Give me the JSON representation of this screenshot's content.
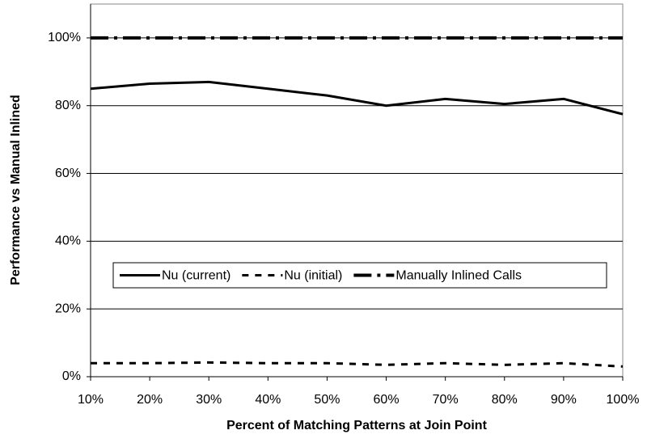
{
  "chart_data": {
    "type": "line",
    "xlabel": "Percent of Matching Patterns at Join Point",
    "ylabel": "Performance vs Manual Inlined",
    "x": [
      10,
      20,
      30,
      40,
      50,
      60,
      70,
      80,
      90,
      100
    ],
    "xlim": [
      10,
      100
    ],
    "xticks": [
      {
        "value": 10,
        "label": "10%"
      },
      {
        "value": 20,
        "label": "20%"
      },
      {
        "value": 30,
        "label": "30%"
      },
      {
        "value": 40,
        "label": "40%"
      },
      {
        "value": 50,
        "label": "50%"
      },
      {
        "value": 60,
        "label": "60%"
      },
      {
        "value": 70,
        "label": "70%"
      },
      {
        "value": 80,
        "label": "80%"
      },
      {
        "value": 90,
        "label": "90%"
      },
      {
        "value": 100,
        "label": "100%"
      }
    ],
    "ylim": [
      0,
      110
    ],
    "yticks": [
      {
        "value": 0,
        "label": "0%"
      },
      {
        "value": 20,
        "label": "20%"
      },
      {
        "value": 40,
        "label": "40%"
      },
      {
        "value": 60,
        "label": "60%"
      },
      {
        "value": 80,
        "label": "80%"
      },
      {
        "value": 100,
        "label": "100%"
      }
    ],
    "grid": true,
    "legend": "center",
    "series": [
      {
        "name": "Nu (current)",
        "color": "#000000",
        "style": "solid",
        "values": [
          85,
          86.5,
          87,
          85,
          83,
          80,
          82,
          80.5,
          82,
          77.5
        ]
      },
      {
        "name": "Nu (initial)",
        "color": "#000000",
        "style": "dashed",
        "values": [
          4,
          4,
          4.2,
          4,
          4,
          3.5,
          4,
          3.5,
          4,
          3
        ]
      },
      {
        "name": "Manually Inlined Calls",
        "color": "#000000",
        "style": "dashdot",
        "values": [
          100,
          100,
          100,
          100,
          100,
          100,
          100,
          100,
          100,
          100
        ]
      }
    ]
  }
}
